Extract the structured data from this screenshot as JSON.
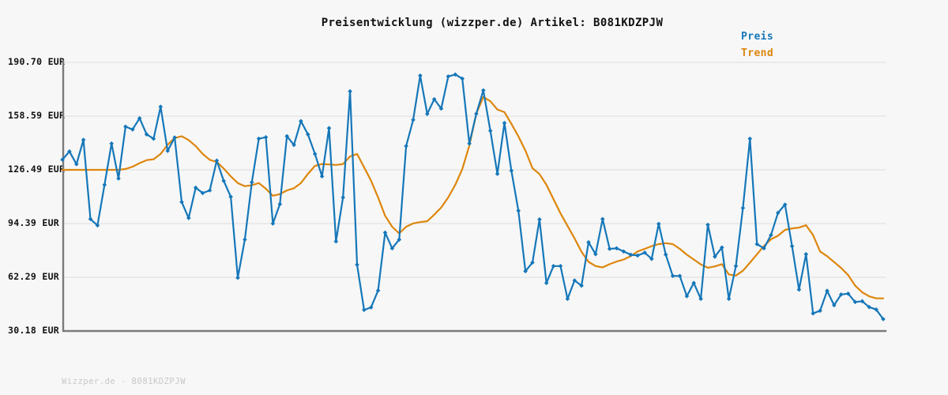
{
  "title": "Preisentwicklung (wizzper.de) Artikel: B081KDZPJW",
  "footer": "Wizzper.de - B081KDZPJW",
  "legend": {
    "preis_label": "Preis",
    "trend_label": "Trend",
    "position": "top-right"
  },
  "colors": {
    "background": "#f7f7f7",
    "grid": "#e2e2e2",
    "axis": "#7b7b7b",
    "preis": "#1577b9",
    "trend": "#dd860d",
    "text": "#111111",
    "footer_text": "#c8c8c8"
  },
  "y_axis": {
    "tick_labels": [
      "190.70 EUR",
      "158.59 EUR",
      "126.49 EUR",
      "94.39 EUR",
      "62.29 EUR",
      "30.18 EUR"
    ],
    "tick_values": [
      190.7,
      158.59,
      126.49,
      94.39,
      62.29,
      30.18
    ],
    "unit": "EUR"
  },
  "chart_data": {
    "type": "line",
    "title": "Preisentwicklung (wizzper.de) Artikel: B081KDZPJW",
    "xlabel": "",
    "ylabel": "",
    "x_axis_labels": "none",
    "ylim": [
      30.18,
      190.7
    ],
    "yticks": [
      30.18,
      62.29,
      94.39,
      126.49,
      158.59,
      190.7
    ],
    "grid": "horizontal",
    "legend_position": "top-right",
    "x": "index (evenly spaced observations, 118 points)",
    "series": [
      {
        "name": "Preis",
        "color": "#1577b9",
        "marker": "diamond",
        "values": [
          132.6,
          137.5,
          129.9,
          144.4,
          97.1,
          93.3,
          117.5,
          142.2,
          121.3,
          152.3,
          150.6,
          157.3,
          147.7,
          145.1,
          164.2,
          137.8,
          145.8,
          107.3,
          97.7,
          115.8,
          112.6,
          114.2,
          132.0,
          119.9,
          110.4,
          62.0,
          84.8,
          119.1,
          145.1,
          146.0,
          94.4,
          106.0,
          146.6,
          141.4,
          155.6,
          147.7,
          136.0,
          122.6,
          151.4,
          83.7,
          110.0,
          173.4,
          69.8,
          42.8,
          44.3,
          54.4,
          89.0,
          79.6,
          84.8,
          140.7,
          156.4,
          182.8,
          159.9,
          168.7,
          163.1,
          182.3,
          183.5,
          181.0,
          142.2,
          160.0,
          174.0,
          149.8,
          124.1,
          154.5,
          126.0,
          102.1,
          65.9,
          71.1,
          96.9,
          58.9,
          69.0,
          69.0,
          49.4,
          60.4,
          57.3,
          83.2,
          76.1,
          97.1,
          79.3,
          79.6,
          77.7,
          75.8,
          75.3,
          77.0,
          73.3,
          94.2,
          75.9,
          63.1,
          63.1,
          51.0,
          58.9,
          49.4,
          93.7,
          74.6,
          80.1,
          49.4,
          69.0,
          103.7,
          145.1,
          82.1,
          79.6,
          87.5,
          100.8,
          105.7,
          80.9,
          54.9,
          76.1,
          40.7,
          42.3,
          54.2,
          45.6,
          52.0,
          52.5,
          47.5,
          48.0,
          44.5,
          43.0,
          37.3
        ]
      },
      {
        "name": "Trend",
        "color": "#dd860d",
        "marker": "none",
        "values": [
          126.5,
          126.5,
          126.5,
          126.5,
          126.5,
          126.5,
          126.5,
          126.5,
          126.5,
          127.0,
          128.4,
          130.5,
          132.3,
          132.8,
          136.0,
          141.5,
          145.5,
          146.6,
          144.3,
          140.7,
          136.0,
          132.5,
          131.2,
          127.3,
          122.6,
          118.6,
          116.7,
          117.3,
          118.6,
          115.2,
          111.0,
          112.0,
          114.2,
          115.5,
          118.6,
          124.1,
          128.9,
          130.0,
          129.7,
          129.4,
          130.0,
          134.5,
          136.0,
          128.0,
          120.0,
          110.0,
          99.0,
          92.5,
          88.5,
          92.5,
          94.5,
          95.3,
          95.8,
          99.7,
          104.0,
          110.0,
          117.5,
          127.0,
          141.0,
          160.0,
          170.0,
          167.5,
          162.5,
          161.0,
          154.0,
          146.5,
          138.0,
          127.5,
          124.0,
          117.5,
          109.0,
          100.5,
          93.0,
          85.5,
          77.5,
          71.5,
          69.0,
          68.2,
          70.1,
          71.7,
          72.9,
          74.9,
          77.7,
          79.3,
          80.9,
          82.1,
          82.7,
          82.1,
          79.3,
          75.8,
          72.9,
          70.0,
          68.0,
          68.8,
          70.1,
          64.0,
          63.3,
          66.2,
          71.0,
          76.0,
          81.0,
          85.0,
          87.1,
          90.6,
          91.5,
          92.0,
          93.4,
          87.5,
          77.7,
          74.9,
          71.4,
          67.9,
          63.6,
          57.3,
          53.3,
          50.9,
          49.7,
          49.7
        ]
      }
    ]
  }
}
